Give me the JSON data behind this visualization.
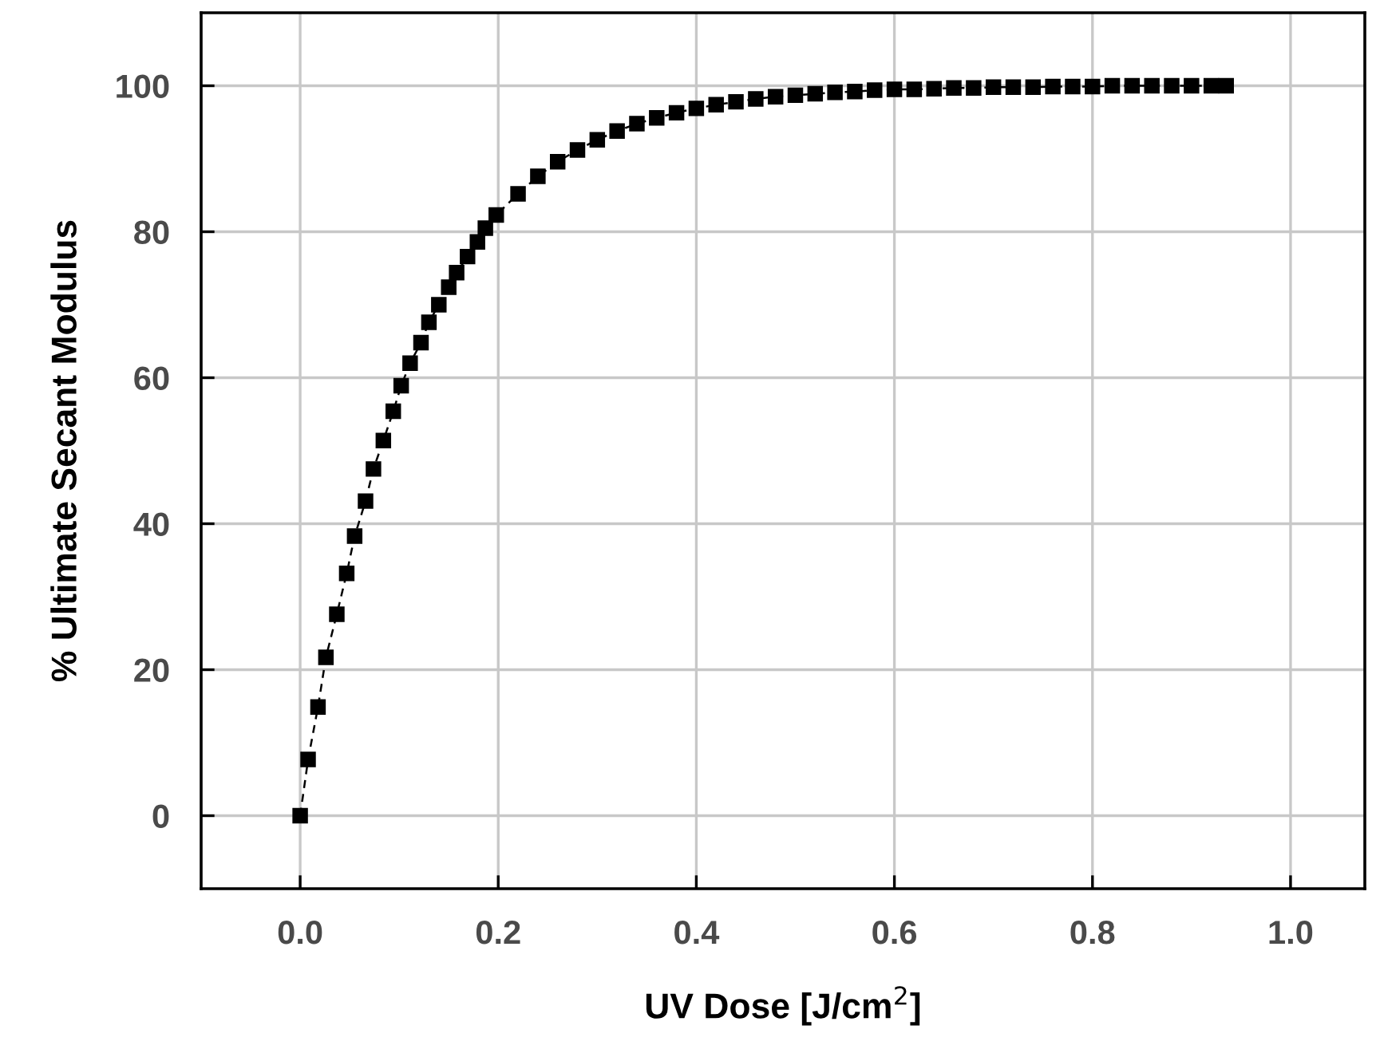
{
  "chart_data": {
    "type": "line",
    "xlabel": "UV Dose [J/cm$^{2}$]",
    "ylabel": "% Ultimate Secant Modulus",
    "xlim": [
      -0.1,
      1.075
    ],
    "ylim": [
      -10,
      110
    ],
    "xticks": [
      {
        "value": 0,
        "label": "0.0"
      },
      0.2,
      0.4,
      0.6,
      0.8,
      {
        "value": 1,
        "label": "1.0"
      }
    ],
    "yticks": [
      0,
      20,
      40,
      60,
      80,
      100
    ],
    "grid": true,
    "marker": "square",
    "line_style": "dashed",
    "series": [
      {
        "color": "#000000",
        "x": [
          0,
          0.008,
          0.018,
          0.026,
          0.037,
          0.047,
          0.055,
          0.066,
          0.074,
          0.084,
          0.094,
          0.102,
          0.111,
          0.122,
          0.13,
          0.14,
          0.15,
          0.158,
          0.169,
          0.179,
          0.187,
          0.198,
          0.22,
          0.24,
          0.26,
          0.28,
          0.3,
          0.32,
          0.34,
          0.36,
          0.38,
          0.4,
          0.42,
          0.44,
          0.46,
          0.48,
          0.5,
          0.52,
          0.54,
          0.56,
          0.58,
          0.6,
          0.62,
          0.64,
          0.66,
          0.68,
          0.7,
          0.72,
          0.74,
          0.76,
          0.78,
          0.8,
          0.82,
          0.84,
          0.86,
          0.88,
          0.9,
          0.92,
          0.935
        ],
        "values": [
          0,
          7.7,
          14.9,
          21.7,
          27.6,
          33.2,
          38.3,
          43.1,
          47.5,
          51.4,
          55.4,
          58.9,
          62,
          64.8,
          67.6,
          70,
          72.4,
          74.4,
          76.6,
          78.6,
          80.5,
          82.3,
          85.2,
          87.6,
          89.6,
          91.2,
          92.6,
          93.8,
          94.8,
          95.6,
          96.3,
          96.9,
          97.4,
          97.8,
          98.2,
          98.5,
          98.7,
          98.9,
          99.1,
          99.2,
          99.4,
          99.5,
          99.5,
          99.6,
          99.7,
          99.7,
          99.8,
          99.8,
          99.8,
          99.9,
          99.9,
          99.9,
          100,
          100,
          100,
          100,
          100,
          100,
          100
        ]
      }
    ]
  }
}
